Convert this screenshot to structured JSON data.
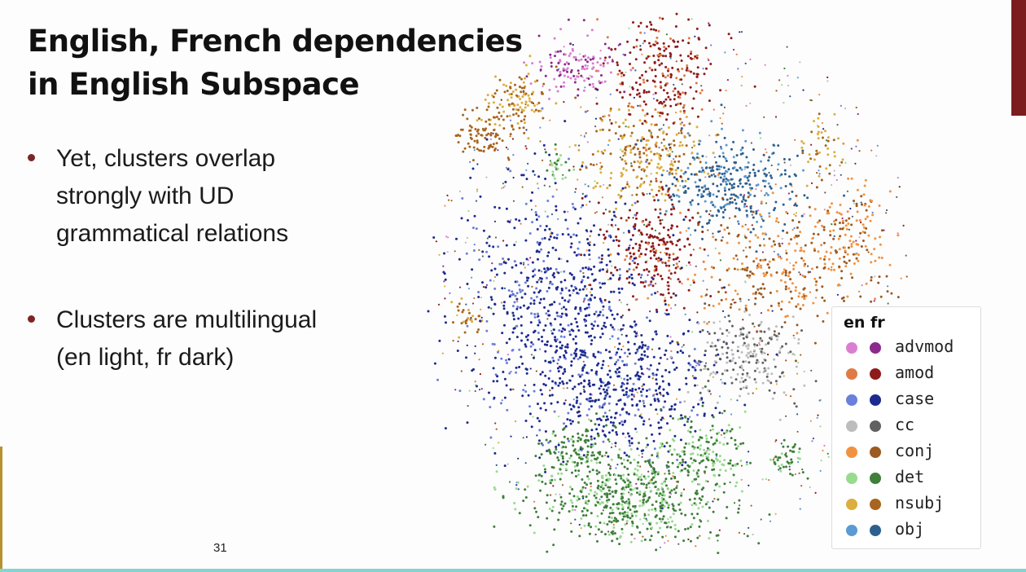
{
  "slide": {
    "title_line1": "English, French dependencies",
    "title_line2": "in English Subspace",
    "bullets": [
      [
        "Yet, clusters overlap",
        "strongly with UD",
        "grammatical relations"
      ],
      [
        "Clusters are multilingual",
        "(en light, fr dark)"
      ]
    ],
    "page_number": "31"
  },
  "colors": {
    "accent_top_right": "#7b1d1d",
    "accent_left": "#b8912f",
    "bottom_line": "#86d4cf",
    "bullet_dot": "#7a2626"
  },
  "chart_data": {
    "type": "scatter",
    "title": "",
    "xlabel": "",
    "ylabel": "",
    "grid": false,
    "legend_placement": "bottom-right",
    "legend_header": "en fr",
    "series": [
      {
        "name": "advmod",
        "en_color": "#da7fd0",
        "fr_color": "#8b2a8c"
      },
      {
        "name": "amod",
        "en_color": "#e07a45",
        "fr_color": "#8e1b1b"
      },
      {
        "name": "case",
        "en_color": "#6b7fdc",
        "fr_color": "#1d2a8f"
      },
      {
        "name": "cc",
        "en_color": "#bdbdbd",
        "fr_color": "#616161"
      },
      {
        "name": "conj",
        "en_color": "#f29240",
        "fr_color": "#9a5a21"
      },
      {
        "name": "det",
        "en_color": "#98db8f",
        "fr_color": "#3f7f3a"
      },
      {
        "name": "nsubj",
        "en_color": "#dcae3e",
        "fr_color": "#a8651f"
      },
      {
        "name": "obj",
        "en_color": "#5b9bd1",
        "fr_color": "#2d5f8e"
      }
    ]
  }
}
